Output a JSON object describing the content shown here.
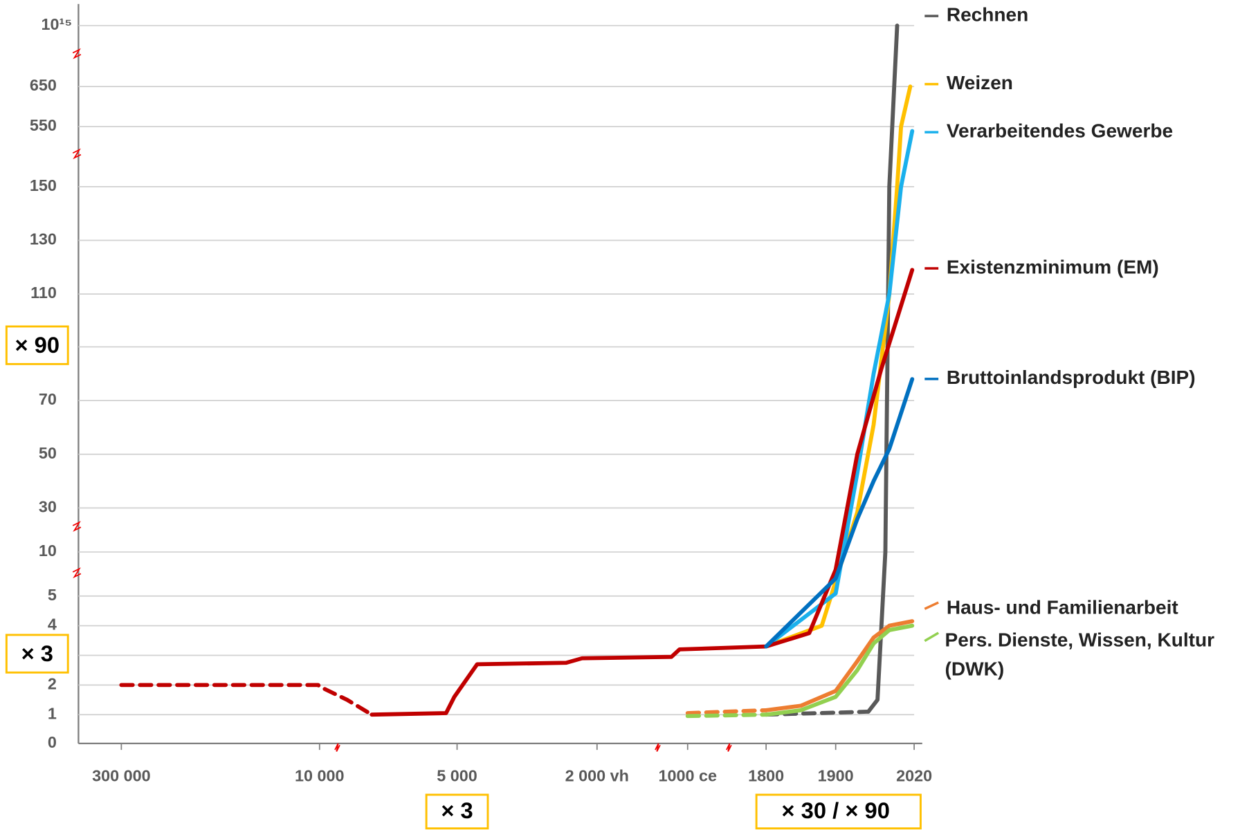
{
  "chart_data": {
    "type": "line",
    "xticks": [
      {
        "value": -300000,
        "label": "300 000"
      },
      {
        "value": -10000,
        "label": "10 000"
      },
      {
        "value": -5000,
        "label": "5 000"
      },
      {
        "value": -2000,
        "label": "2 000 vh"
      },
      {
        "value": 1000,
        "label": "1000 ce"
      },
      1800,
      1900,
      2020
    ],
    "xlim": [
      -300000,
      2020
    ],
    "yticks": [
      0,
      1,
      2,
      {
        "value": 3,
        "label": "× 3"
      },
      4,
      5,
      10,
      30,
      50,
      70,
      {
        "value": 90,
        "label": "× 90"
      },
      110,
      130,
      150,
      550,
      650,
      {
        "value": 1000000000000000,
        "label": "10¹⁵"
      }
    ],
    "ylim": [
      0,
      1000000000000000
    ],
    "grid": true,
    "annotations": [
      "× 3",
      "× 30 / × 90"
    ],
    "series": [
      {
        "name": "Rechnen",
        "color": "#595959",
        "dashed_until": 1,
        "x": [
          1800,
          1950,
          1964,
          1976,
          1982,
          1994
        ],
        "values": [
          1,
          1.1,
          1.5,
          10,
          150,
          1000000000000000
        ]
      },
      {
        "name": "Weizen",
        "color": "#ffc000",
        "x": [
          1800,
          1880,
          1933,
          1958,
          1982,
          1994,
          2000,
          2014
        ],
        "values": [
          3.3,
          4,
          28,
          61,
          110,
          150,
          550,
          650
        ]
      },
      {
        "name": "Verarbeitendes Gewerbe",
        "color": "#1ab0ec",
        "x": [
          1800,
          1900,
          1933,
          1958,
          1982,
          2000,
          2017
        ],
        "values": [
          3.3,
          5.3,
          43,
          80,
          110,
          150,
          520
        ]
      },
      {
        "name": "Existenzminimum (EM)",
        "color": "#c00000",
        "dashed_until": 4,
        "x": [
          -300000,
          -12000,
          -10000,
          -9000,
          -8100,
          -5400,
          -5100,
          -4570,
          -2660,
          -2320,
          464,
          732,
          1800,
          1862,
          1900,
          1933,
          1970,
          2017
        ],
        "values": [
          2,
          2,
          1.95,
          1.5,
          1,
          1.05,
          1.6,
          2.7,
          2.75,
          2.9,
          2.95,
          3.2,
          3.3,
          3.75,
          8,
          50,
          82,
          119
        ]
      },
      {
        "name": "Bruttoinlandsprodukt (BIP)",
        "color": "#0070c0",
        "x": [
          1800,
          1900,
          1933,
          1958,
          1982,
          2017
        ],
        "values": [
          3.3,
          7,
          25,
          40,
          52,
          78
        ]
      },
      {
        "name": "Haus- und Familienarbeit",
        "color": "#ed7d31",
        "dashed_until": 1,
        "x": [
          1000,
          1800,
          1850,
          1900,
          1933,
          1958,
          1982,
          2017
        ],
        "values": [
          1.05,
          1.15,
          1.3,
          1.8,
          2.8,
          3.6,
          4,
          4.15
        ]
      },
      {
        "name": "Pers. Dienste, Wissen, Kultur (DWK)",
        "color": "#92d050",
        "dashed_until": 1,
        "x": [
          1000,
          1800,
          1850,
          1900,
          1933,
          1958,
          1982,
          2017
        ],
        "values": [
          0.95,
          1,
          1.15,
          1.6,
          2.5,
          3.4,
          3.85,
          4
        ]
      }
    ]
  }
}
